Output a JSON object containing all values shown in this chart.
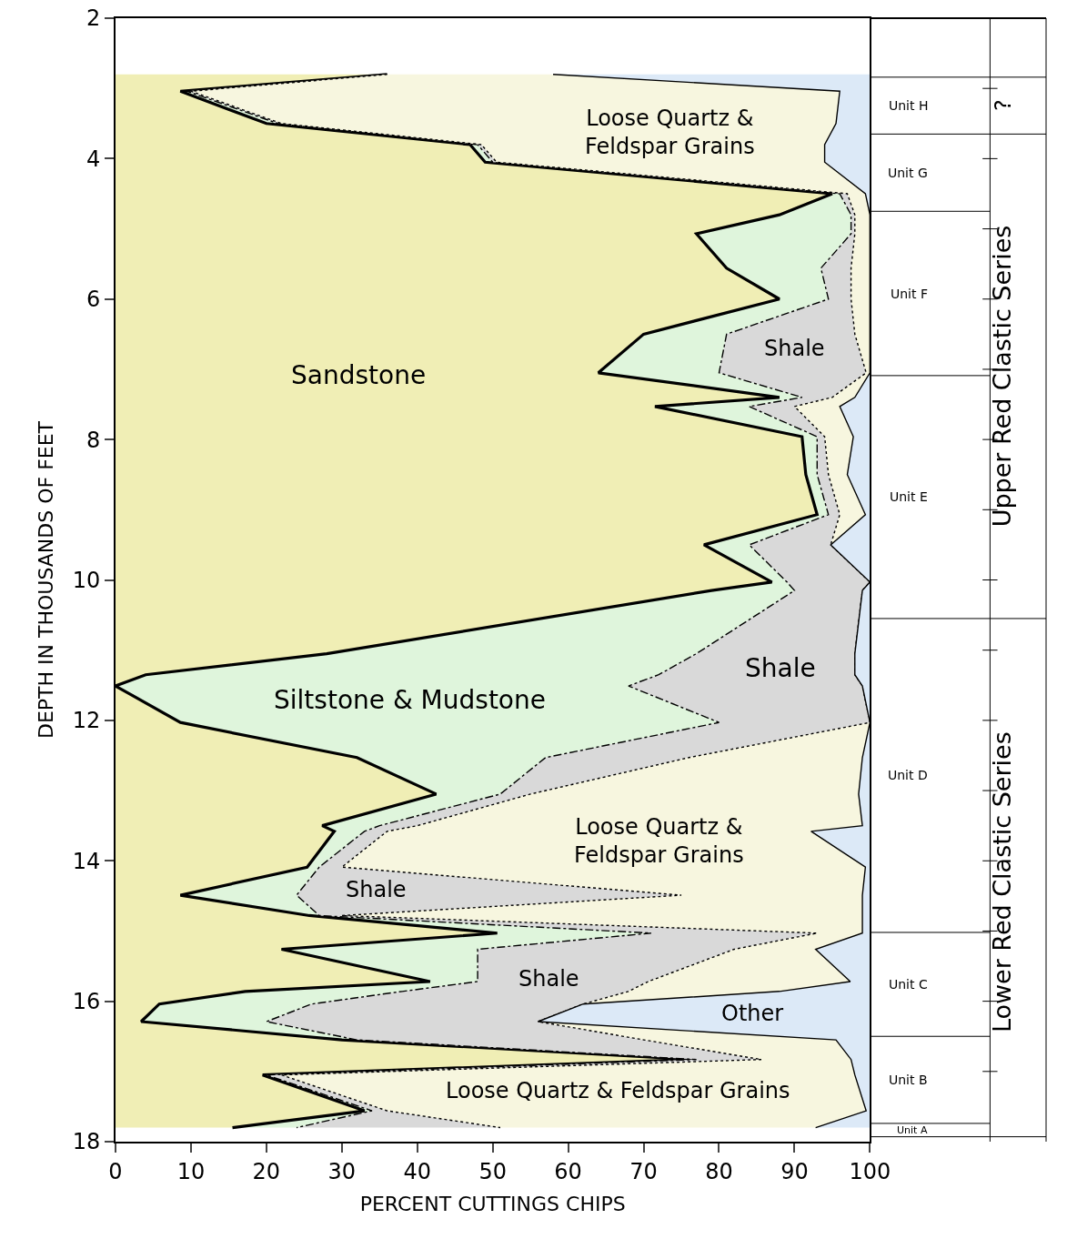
{
  "chart_data": {
    "type": "area",
    "stacked": true,
    "orientation": "horizontal",
    "xlabel": "PERCENT CUTTINGS CHIPS",
    "ylabel": "DEPTH IN THOUSANDS OF FEET",
    "x": [
      2.8,
      3.04,
      3.5,
      3.8,
      4.05,
      4.5,
      4.8,
      5.07,
      5.56,
      6.0,
      6.5,
      7.05,
      7.4,
      7.53,
      7.96,
      8.5,
      9.07,
      9.5,
      10.03,
      10.15,
      11.05,
      11.35,
      11.51,
      12.03,
      12.53,
      13.05,
      13.5,
      13.58,
      14.09,
      14.49,
      14.78,
      15.03,
      15.26,
      15.72,
      15.86,
      16.04,
      16.29,
      16.55,
      16.83,
      17.05,
      17.56,
      17.8
    ],
    "series": [
      {
        "color": "#f0eeb5",
        "line_style": "solid",
        "values": [
          36,
          8.6,
          20,
          47,
          49,
          95,
          88,
          77,
          81,
          88,
          70,
          64,
          88,
          71.5,
          91,
          91.5,
          93,
          78,
          87,
          79,
          28,
          4,
          0,
          8.6,
          32,
          42.5,
          27.4,
          29,
          25.4,
          8.6,
          25.7,
          50.6,
          22,
          41.7,
          17.2,
          5.8,
          3.4,
          30,
          76.5,
          19.5,
          33,
          15.5
        ]
      },
      {
        "color": "#dff5dc",
        "line_style": "dashed",
        "values": [
          0,
          0.9,
          1.5,
          1,
          1,
          1,
          9.5,
          20.5,
          12.5,
          6.5,
          11,
          16,
          3,
          12.5,
          2,
          1.5,
          1.5,
          6,
          2,
          11,
          49,
          68,
          68,
          71.4,
          25,
          8.5,
          7.6,
          4,
          1.6,
          15.4,
          1.3,
          20.4,
          26,
          6.3,
          20.8,
          20.2,
          16.6,
          2,
          0.5,
          0.5,
          1,
          8.5
        ]
      },
      {
        "color": "#d9d9d9",
        "line_style": "dotted",
        "values": [
          0,
          0.5,
          0.5,
          0.5,
          0.5,
          1,
          0.5,
          0.5,
          4,
          3,
          17,
          19.5,
          4,
          6,
          1,
          1.5,
          1.5,
          10.8,
          11,
          9,
          21,
          26,
          31,
          20,
          19,
          4,
          5,
          3,
          3,
          51,
          3,
          22,
          34,
          22.6,
          30,
          36,
          36,
          38,
          8.6,
          2,
          2,
          27
        ]
      },
      {
        "color": "#f7f6df",
        "line_style": "solid",
        "values": [
          22,
          86,
          73.5,
          45.5,
          43.5,
          2.4,
          2,
          2,
          2.5,
          2.5,
          2,
          0.5,
          3,
          6,
          3.8,
          2.5,
          3.4,
          0,
          0,
          0,
          0,
          0,
          0,
          0,
          23,
          43.5,
          59,
          56.2,
          69.4,
          24,
          69,
          6,
          10.8,
          26.8,
          20,
          0,
          0,
          25.5,
          11.9,
          76,
          63.5,
          41.8
        ]
      },
      {
        "color": "#dce9f7",
        "values": [
          42,
          4,
          4.5,
          6,
          6,
          0.6,
          0,
          0,
          0,
          0,
          0,
          0,
          2,
          4,
          2.2,
          3,
          0.6,
          5.2,
          0,
          1,
          2,
          2,
          1,
          0,
          1,
          1.5,
          1,
          7.8,
          0.6,
          1,
          1,
          1,
          7.2,
          2.6,
          12,
          38,
          44,
          4.5,
          2.5,
          2,
          0.5,
          7.2
        ]
      }
    ],
    "xlim": [
      0,
      100
    ],
    "xticks": [
      0,
      10,
      20,
      30,
      40,
      50,
      60,
      70,
      80,
      90,
      100
    ],
    "ylim": [
      18,
      2
    ],
    "yticks": [
      2,
      4,
      6,
      8,
      10,
      12,
      14,
      16,
      18
    ],
    "annotations": [
      "Loose Quartz &\nFeldspar Grains",
      "Sandstone",
      "Shale",
      "Shale",
      "Siltstone & Mudstone",
      "Loose Quartz &\nFeldspar Grains",
      "Shale",
      "Shale",
      "Other",
      "Loose Quartz & Feldspar Grains",
      "Unit H",
      "Unit G",
      "Unit F",
      "Unit E",
      "Unit D",
      "Unit C",
      "Unit B",
      "Unit A",
      "?",
      "Upper Red Clastic Series",
      "Lower Red Clastic Series"
    ]
  }
}
